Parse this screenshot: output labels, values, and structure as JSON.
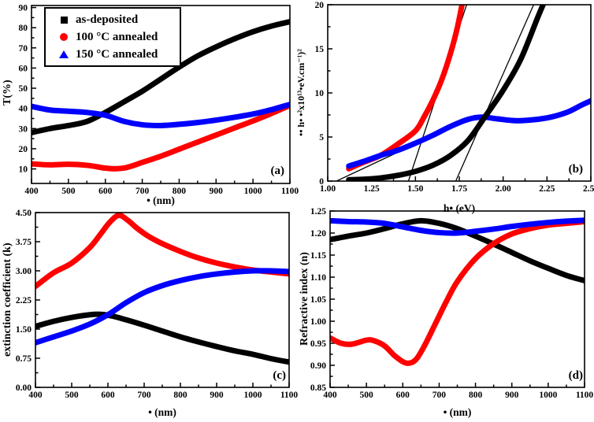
{
  "figure": {
    "colors": {
      "as_deposited": "#000000",
      "annealed_100": "#ff0000",
      "annealed_150": "#0000ff",
      "axis": "#000000",
      "background": "#ffffff"
    },
    "legend": {
      "position": "upper-left of panel (a)",
      "items": [
        {
          "label": "as-deposited",
          "marker": "square",
          "color": "#000000"
        },
        {
          "label": "100 °C annealed",
          "marker": "circle",
          "color": "#ff0000"
        },
        {
          "label": "150 °C annealed",
          "marker": "triangle",
          "color": "#0000ff"
        }
      ]
    }
  },
  "chart_data": [
    {
      "panel": "(a)",
      "type": "line",
      "xlabel": "• (nm)",
      "ylabel": "T(%)",
      "xlim": [
        400,
        1100
      ],
      "ylim": [
        2.8,
        91
      ],
      "grid": false,
      "xticks": {
        "values": [
          400,
          500,
          600,
          700,
          800,
          900,
          1000,
          1100
        ],
        "labels": [
          "400",
          "500",
          "600",
          "700",
          "800",
          "900",
          "1000",
          "1100"
        ]
      },
      "yticks": {
        "values": [
          10,
          20,
          30,
          40,
          50,
          60,
          70,
          80,
          90
        ],
        "labels": [
          "10",
          "20",
          "30",
          "40",
          "50",
          "60",
          "70",
          "80",
          "90"
        ]
      },
      "series": [
        {
          "name": "as-deposited",
          "color": "#000000",
          "lw": 7,
          "straight": false,
          "points": [
            [
              400,
              28
            ],
            [
              450,
              30
            ],
            [
              500,
              31.5
            ],
            [
              550,
              33.5
            ],
            [
              600,
              38
            ],
            [
              650,
              43.2
            ],
            [
              700,
              48.5
            ],
            [
              750,
              54.5
            ],
            [
              800,
              60.5
            ],
            [
              850,
              66
            ],
            [
              900,
              70.5
            ],
            [
              950,
              74.5
            ],
            [
              1000,
              78
            ],
            [
              1050,
              80.8
            ],
            [
              1100,
              83
            ]
          ]
        },
        {
          "name": "100C-annealed",
          "color": "#ff0000",
          "lw": 7,
          "straight": false,
          "points": [
            [
              400,
              12.5
            ],
            [
              450,
              12
            ],
            [
              500,
              12.3
            ],
            [
              550,
              11.8
            ],
            [
              600,
              10.4
            ],
            [
              630,
              10.1
            ],
            [
              660,
              10.8
            ],
            [
              700,
              13.2
            ],
            [
              750,
              16.3
            ],
            [
              800,
              19.8
            ],
            [
              850,
              23.3
            ],
            [
              900,
              26.8
            ],
            [
              950,
              30.3
            ],
            [
              1000,
              33.8
            ],
            [
              1050,
              37.5
            ],
            [
              1100,
              41.5
            ]
          ]
        },
        {
          "name": "150C-annealed",
          "color": "#0000ff",
          "lw": 7,
          "straight": false,
          "points": [
            [
              400,
              41
            ],
            [
              450,
              39.2
            ],
            [
              500,
              38.6
            ],
            [
              550,
              38
            ],
            [
              600,
              36.6
            ],
            [
              650,
              33.6
            ],
            [
              700,
              31.9
            ],
            [
              750,
              31.5
            ],
            [
              800,
              32.1
            ],
            [
              850,
              33
            ],
            [
              900,
              34.2
            ],
            [
              950,
              35.6
            ],
            [
              1000,
              37.2
            ],
            [
              1050,
              39.4
            ],
            [
              1100,
              42
            ]
          ]
        }
      ]
    },
    {
      "panel": "(b)",
      "type": "line",
      "xlabel": "h• (eV)",
      "ylabel": "•• h• •²x10¹³•eV.cm⁻¹)²",
      "xlim": [
        1.0,
        2.5
      ],
      "ylim": [
        0,
        20
      ],
      "grid": false,
      "xticks": {
        "values": [
          1.0,
          1.25,
          1.5,
          1.75,
          2.0,
          2.25,
          2.5
        ],
        "labels": [
          "1.00",
          "1.25",
          "1.50",
          "1.75",
          "2.00",
          "2.25",
          "2.50"
        ]
      },
      "yticks": {
        "values": [
          0,
          5,
          10,
          15,
          20
        ],
        "labels": [
          "0",
          "5",
          "10",
          "15",
          "20"
        ]
      },
      "series": [
        {
          "name": "bandgap-extrapolation-line-1",
          "color": "#000000",
          "lw": 1.3,
          "straight": true,
          "points": [
            [
              1.05,
              0
            ],
            [
              1.82,
              7.2
            ]
          ]
        },
        {
          "name": "bandgap-extrapolation-line-2",
          "color": "#000000",
          "lw": 1.3,
          "straight": true,
          "points": [
            [
              1.46,
              0
            ],
            [
              1.8,
              20.5
            ]
          ]
        },
        {
          "name": "bandgap-extrapolation-line-3",
          "color": "#000000",
          "lw": 1.3,
          "straight": true,
          "points": [
            [
              1.73,
              0
            ],
            [
              2.185,
              20.5
            ]
          ]
        },
        {
          "name": "100C-annealed",
          "color": "#ff0000",
          "lw": 7,
          "straight": false,
          "points": [
            [
              1.12,
              1.4
            ],
            [
              1.2,
              2.1
            ],
            [
              1.3,
              2.9
            ],
            [
              1.4,
              4.2
            ],
            [
              1.5,
              5.7
            ],
            [
              1.55,
              7.3
            ],
            [
              1.6,
              9.2
            ],
            [
              1.65,
              11.5
            ],
            [
              1.7,
              14.5
            ],
            [
              1.74,
              17.5
            ],
            [
              1.78,
              21.5
            ]
          ]
        },
        {
          "name": "150C-annealed",
          "color": "#0000ff",
          "lw": 7,
          "straight": false,
          "points": [
            [
              1.12,
              1.7
            ],
            [
              1.2,
              2.2
            ],
            [
              1.3,
              2.9
            ],
            [
              1.4,
              3.5
            ],
            [
              1.5,
              4.3
            ],
            [
              1.6,
              5.2
            ],
            [
              1.7,
              6.2
            ],
            [
              1.8,
              7.0
            ],
            [
              1.88,
              7.25
            ],
            [
              1.97,
              7.05
            ],
            [
              2.07,
              6.85
            ],
            [
              2.17,
              6.95
            ],
            [
              2.27,
              7.25
            ],
            [
              2.37,
              7.85
            ],
            [
              2.45,
              8.65
            ],
            [
              2.5,
              9.1
            ]
          ]
        },
        {
          "name": "as-deposited",
          "color": "#000000",
          "lw": 7,
          "straight": false,
          "points": [
            [
              1.12,
              0.15
            ],
            [
              1.2,
              0.2
            ],
            [
              1.3,
              0.35
            ],
            [
              1.4,
              0.65
            ],
            [
              1.5,
              1.1
            ],
            [
              1.6,
              1.8
            ],
            [
              1.7,
              2.9
            ],
            [
              1.8,
              4.6
            ],
            [
              1.9,
              7.4
            ],
            [
              2.0,
              10.3
            ],
            [
              2.1,
              13.8
            ],
            [
              2.2,
              18.7
            ],
            [
              2.26,
              21.5
            ]
          ]
        }
      ]
    },
    {
      "panel": "(c)",
      "type": "line",
      "xlabel": "• (nm)",
      "ylabel": "extinction coefficient (k)",
      "xlim": [
        400,
        1100
      ],
      "ylim": [
        0,
        4.5
      ],
      "grid": false,
      "xticks": {
        "values": [
          400,
          500,
          600,
          700,
          800,
          900,
          1000,
          1100
        ],
        "labels": [
          "400",
          "500",
          "600",
          "700",
          "800",
          "900",
          "1000",
          "1100"
        ]
      },
      "yticks": {
        "values": [
          0,
          0.75,
          1.5,
          2.25,
          3.0,
          3.75,
          4.5
        ],
        "labels": [
          "0.00",
          "0.75",
          "1.50",
          "2.25",
          "3.00",
          "3.75",
          "4.50"
        ]
      },
      "series": [
        {
          "name": "as-deposited",
          "color": "#000000",
          "lw": 7,
          "straight": false,
          "points": [
            [
              400,
              1.57
            ],
            [
              450,
              1.7
            ],
            [
              500,
              1.8
            ],
            [
              550,
              1.87
            ],
            [
              580,
              1.88
            ],
            [
              610,
              1.84
            ],
            [
              650,
              1.74
            ],
            [
              700,
              1.6
            ],
            [
              750,
              1.45
            ],
            [
              800,
              1.3
            ],
            [
              850,
              1.17
            ],
            [
              900,
              1.05
            ],
            [
              950,
              0.94
            ],
            [
              1000,
              0.85
            ],
            [
              1050,
              0.74
            ],
            [
              1100,
              0.65
            ]
          ]
        },
        {
          "name": "100C-annealed",
          "color": "#ff0000",
          "lw": 7,
          "straight": false,
          "points": [
            [
              400,
              2.6
            ],
            [
              450,
              2.95
            ],
            [
              500,
              3.2
            ],
            [
              550,
              3.6
            ],
            [
              580,
              3.95
            ],
            [
              605,
              4.25
            ],
            [
              630,
              4.43
            ],
            [
              655,
              4.3
            ],
            [
              680,
              4.1
            ],
            [
              710,
              3.9
            ],
            [
              750,
              3.7
            ],
            [
              800,
              3.5
            ],
            [
              850,
              3.33
            ],
            [
              900,
              3.2
            ],
            [
              950,
              3.1
            ],
            [
              1000,
              3.02
            ],
            [
              1050,
              2.97
            ],
            [
              1100,
              2.92
            ]
          ]
        },
        {
          "name": "150C-annealed",
          "color": "#0000ff",
          "lw": 7,
          "straight": false,
          "points": [
            [
              400,
              1.15
            ],
            [
              450,
              1.3
            ],
            [
              500,
              1.45
            ],
            [
              550,
              1.63
            ],
            [
              600,
              1.87
            ],
            [
              650,
              2.18
            ],
            [
              700,
              2.44
            ],
            [
              750,
              2.62
            ],
            [
              800,
              2.75
            ],
            [
              850,
              2.85
            ],
            [
              900,
              2.92
            ],
            [
              950,
              2.97
            ],
            [
              1000,
              3.0
            ],
            [
              1050,
              3.0
            ],
            [
              1100,
              2.98
            ]
          ]
        }
      ]
    },
    {
      "panel": "(d)",
      "type": "line",
      "xlabel": "• (nm)",
      "ylabel": "Refractive index (n)",
      "xlim": [
        400,
        1100
      ],
      "ylim": [
        0.85,
        1.25
      ],
      "grid": false,
      "xticks": {
        "values": [
          400,
          500,
          600,
          700,
          800,
          900,
          1000,
          1100
        ],
        "labels": [
          "400",
          "500",
          "600",
          "700",
          "800",
          "900",
          "1000",
          "1100"
        ]
      },
      "yticks": {
        "values": [
          0.85,
          0.9,
          0.95,
          1.0,
          1.05,
          1.1,
          1.15,
          1.2,
          1.25
        ],
        "labels": [
          "0.85",
          "0.90",
          "0.95",
          "1.00",
          "1.05",
          "1.10",
          "1.15",
          "1.20",
          "1.25"
        ]
      },
      "series": [
        {
          "name": "as-deposited",
          "color": "#000000",
          "lw": 7,
          "straight": false,
          "points": [
            [
              400,
              1.185
            ],
            [
              450,
              1.193
            ],
            [
              500,
              1.2
            ],
            [
              550,
              1.21
            ],
            [
              600,
              1.221
            ],
            [
              650,
              1.228
            ],
            [
              700,
              1.222
            ],
            [
              750,
              1.21
            ],
            [
              800,
              1.193
            ],
            [
              850,
              1.175
            ],
            [
              900,
              1.156
            ],
            [
              950,
              1.137
            ],
            [
              1000,
              1.12
            ],
            [
              1050,
              1.104
            ],
            [
              1100,
              1.092
            ]
          ]
        },
        {
          "name": "100C-annealed",
          "color": "#ff0000",
          "lw": 7,
          "straight": false,
          "points": [
            [
              400,
              0.962
            ],
            [
              430,
              0.95
            ],
            [
              460,
              0.948
            ],
            [
              500,
              0.957
            ],
            [
              520,
              0.956
            ],
            [
              550,
              0.944
            ],
            [
              580,
              0.92
            ],
            [
              610,
              0.905
            ],
            [
              635,
              0.912
            ],
            [
              660,
              0.945
            ],
            [
              690,
              0.995
            ],
            [
              720,
              1.045
            ],
            [
              750,
              1.09
            ],
            [
              800,
              1.142
            ],
            [
              850,
              1.176
            ],
            [
              900,
              1.198
            ],
            [
              950,
              1.21
            ],
            [
              1000,
              1.218
            ],
            [
              1050,
              1.222
            ],
            [
              1100,
              1.226
            ]
          ]
        },
        {
          "name": "150C-annealed",
          "color": "#0000ff",
          "lw": 7,
          "straight": false,
          "points": [
            [
              400,
              1.228
            ],
            [
              450,
              1.226
            ],
            [
              500,
              1.225
            ],
            [
              550,
              1.222
            ],
            [
              600,
              1.214
            ],
            [
              650,
              1.206
            ],
            [
              700,
              1.201
            ],
            [
              750,
              1.2
            ],
            [
              800,
              1.204
            ],
            [
              850,
              1.209
            ],
            [
              900,
              1.215
            ],
            [
              950,
              1.22
            ],
            [
              1000,
              1.224
            ],
            [
              1050,
              1.227
            ],
            [
              1100,
              1.229
            ]
          ]
        }
      ]
    }
  ]
}
